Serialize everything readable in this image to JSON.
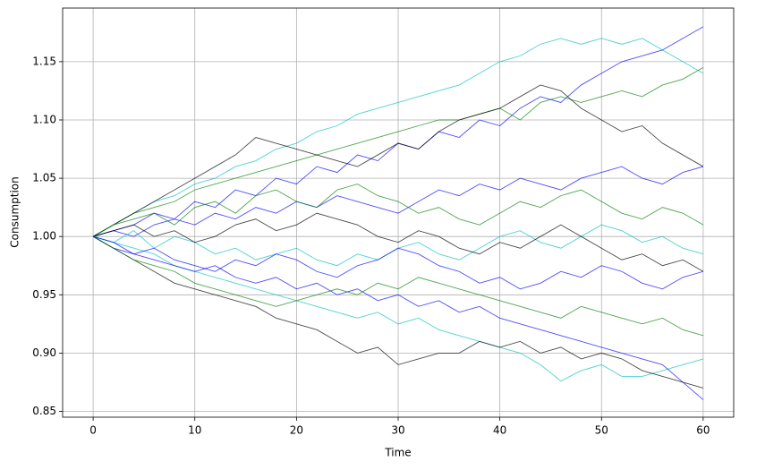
{
  "chart_data": {
    "type": "line",
    "x_label": "Time",
    "y_label": "Consumption",
    "x": [
      0,
      2,
      4,
      6,
      8,
      10,
      12,
      14,
      16,
      18,
      20,
      22,
      24,
      26,
      28,
      30,
      32,
      34,
      36,
      38,
      40,
      42,
      44,
      46,
      48,
      50,
      52,
      54,
      56,
      58,
      60
    ],
    "xlim": [
      -3,
      63
    ],
    "ylim": [
      0.845,
      1.196
    ],
    "xticks": [
      0,
      10,
      20,
      30,
      40,
      50,
      60
    ],
    "yticks": [
      0.85,
      {
        "value": 0.9,
        "label": "0.90"
      },
      0.95,
      {
        "value": 1,
        "label": "1.00"
      },
      1.05,
      {
        "value": 1.1,
        "label": "1.10"
      },
      1.15
    ],
    "grid": true,
    "series": [
      {
        "color": "#00bfbf",
        "values": [
          1.0,
          1.01,
          1.02,
          1.03,
          1.035,
          1.045,
          1.05,
          1.06,
          1.065,
          1.075,
          1.08,
          1.09,
          1.095,
          1.105,
          1.11,
          1.115,
          1.12,
          1.125,
          1.13,
          1.14,
          1.15,
          1.155,
          1.165,
          1.17,
          1.165,
          1.17,
          1.165,
          1.17,
          1.16,
          1.15,
          1.14
        ]
      },
      {
        "color": "#0000ff",
        "values": [
          1.0,
          1.005,
          1.01,
          1.02,
          1.015,
          1.03,
          1.025,
          1.04,
          1.035,
          1.05,
          1.045,
          1.06,
          1.055,
          1.07,
          1.065,
          1.08,
          1.075,
          1.09,
          1.085,
          1.1,
          1.095,
          1.11,
          1.12,
          1.115,
          1.13,
          1.14,
          1.15,
          1.155,
          1.16,
          1.17,
          1.18
        ]
      },
      {
        "color": "#00bfbf",
        "values": [
          1.0,
          0.995,
          0.99,
          0.985,
          0.975,
          0.97,
          0.965,
          0.96,
          0.955,
          0.95,
          0.945,
          0.94,
          0.935,
          0.93,
          0.935,
          0.925,
          0.93,
          0.92,
          0.915,
          0.91,
          0.905,
          0.9,
          0.89,
          0.876,
          0.885,
          0.89,
          0.88,
          0.88,
          0.885,
          0.89,
          0.895
        ]
      },
      {
        "color": "#0000ff",
        "values": [
          1.0,
          0.99,
          0.985,
          0.98,
          0.975,
          0.97,
          0.975,
          0.965,
          0.96,
          0.965,
          0.955,
          0.96,
          0.95,
          0.955,
          0.945,
          0.95,
          0.94,
          0.945,
          0.935,
          0.94,
          0.93,
          0.925,
          0.92,
          0.915,
          0.91,
          0.905,
          0.9,
          0.895,
          0.89,
          0.875,
          0.86
        ]
      },
      {
        "color": "#008000",
        "values": [
          1.0,
          1.01,
          1.02,
          1.025,
          1.03,
          1.04,
          1.045,
          1.05,
          1.055,
          1.06,
          1.065,
          1.07,
          1.075,
          1.08,
          1.085,
          1.09,
          1.095,
          1.1,
          1.1,
          1.105,
          1.11,
          1.1,
          1.115,
          1.12,
          1.115,
          1.12,
          1.125,
          1.12,
          1.13,
          1.135,
          1.145
        ]
      },
      {
        "color": "#000000",
        "values": [
          1.0,
          1.01,
          1.02,
          1.03,
          1.04,
          1.05,
          1.06,
          1.07,
          1.085,
          1.08,
          1.075,
          1.07,
          1.065,
          1.06,
          1.07,
          1.08,
          1.075,
          1.09,
          1.1,
          1.105,
          1.11,
          1.12,
          1.13,
          1.125,
          1.11,
          1.1,
          1.09,
          1.095,
          1.08,
          1.07,
          1.06
        ]
      },
      {
        "color": "#000000",
        "values": [
          1.0,
          0.99,
          0.98,
          0.97,
          0.96,
          0.955,
          0.95,
          0.945,
          0.94,
          0.93,
          0.925,
          0.92,
          0.91,
          0.9,
          0.905,
          0.89,
          0.895,
          0.9,
          0.9,
          0.91,
          0.905,
          0.91,
          0.9,
          0.905,
          0.895,
          0.9,
          0.895,
          0.885,
          0.88,
          0.875,
          0.87
        ]
      },
      {
        "color": "#008000",
        "values": [
          1.0,
          0.99,
          0.98,
          0.975,
          0.97,
          0.96,
          0.955,
          0.95,
          0.945,
          0.94,
          0.945,
          0.95,
          0.955,
          0.95,
          0.96,
          0.955,
          0.965,
          0.96,
          0.955,
          0.95,
          0.945,
          0.94,
          0.935,
          0.93,
          0.94,
          0.935,
          0.93,
          0.925,
          0.93,
          0.92,
          0.915
        ]
      },
      {
        "color": "#0000ff",
        "values": [
          1.0,
          1.005,
          1,
          1.01,
          1.015,
          1.01,
          1.02,
          1.015,
          1.025,
          1.02,
          1.03,
          1.025,
          1.035,
          1.03,
          1.025,
          1.02,
          1.03,
          1.04,
          1.035,
          1.045,
          1.04,
          1.05,
          1.045,
          1.04,
          1.05,
          1.055,
          1.06,
          1.05,
          1.045,
          1.055,
          1.06
        ]
      },
      {
        "color": "#00bfbf",
        "values": [
          1,
          0.995,
          1.005,
          0.99,
          1,
          0.995,
          0.985,
          0.99,
          0.98,
          0.985,
          0.99,
          0.98,
          0.975,
          0.985,
          0.98,
          0.99,
          0.995,
          0.985,
          0.98,
          0.99,
          1,
          1.005,
          0.995,
          0.99,
          1,
          1.01,
          1.005,
          0.995,
          1,
          0.99,
          0.985
        ]
      },
      {
        "color": "#000000",
        "values": [
          1,
          1.005,
          1.01,
          1,
          1.005,
          0.995,
          1,
          1.01,
          1.015,
          1.005,
          1.01,
          1.02,
          1.015,
          1.01,
          1,
          0.995,
          1.005,
          1,
          0.99,
          0.985,
          0.995,
          0.99,
          1,
          1.01,
          1,
          0.99,
          0.98,
          0.985,
          0.975,
          0.98,
          0.97
        ]
      },
      {
        "color": "#008000",
        "values": [
          1,
          1.01,
          1.015,
          1.02,
          1.01,
          1.025,
          1.03,
          1.02,
          1.035,
          1.04,
          1.03,
          1.025,
          1.04,
          1.045,
          1.035,
          1.03,
          1.02,
          1.025,
          1.015,
          1.01,
          1.02,
          1.03,
          1.025,
          1.035,
          1.04,
          1.03,
          1.02,
          1.015,
          1.025,
          1.02,
          1.01
        ]
      },
      {
        "color": "#0000ff",
        "values": [
          1,
          0.995,
          0.985,
          0.99,
          0.98,
          0.975,
          0.97,
          0.98,
          0.975,
          0.985,
          0.98,
          0.97,
          0.965,
          0.975,
          0.98,
          0.99,
          0.985,
          0.975,
          0.97,
          0.96,
          0.965,
          0.955,
          0.96,
          0.97,
          0.965,
          0.975,
          0.97,
          0.96,
          0.955,
          0.965,
          0.97
        ]
      }
    ]
  }
}
